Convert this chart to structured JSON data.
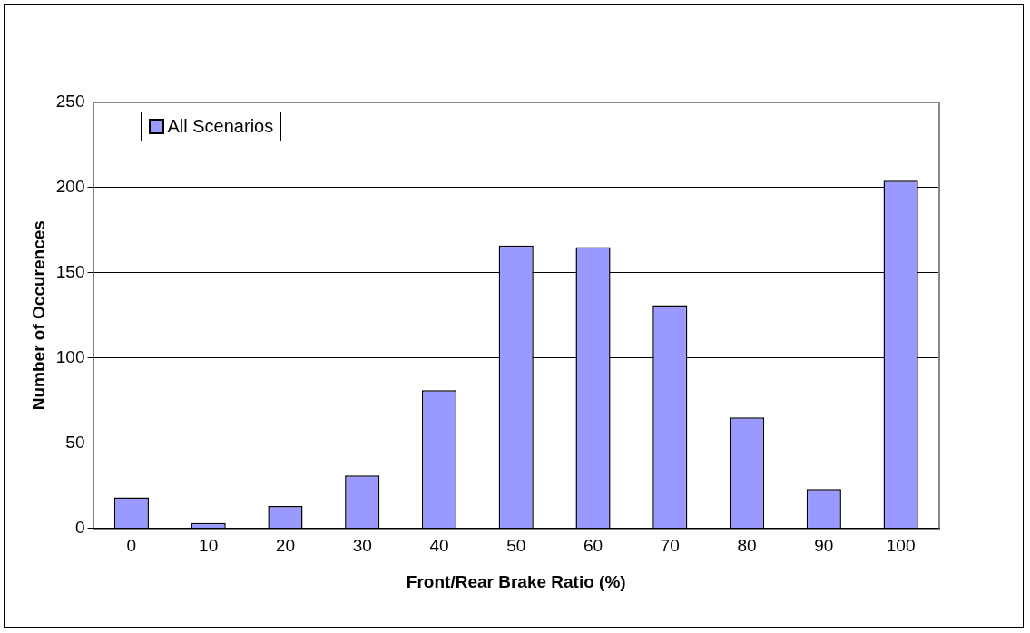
{
  "chart_data": {
    "type": "bar",
    "xlabel": "Front/Rear Brake Ratio (%)",
    "ylabel": "Number of Occurences",
    "categories": [
      "0",
      "10",
      "20",
      "30",
      "40",
      "50",
      "60",
      "70",
      "80",
      "90",
      "100"
    ],
    "series": [
      {
        "name": "All Scenarios",
        "color": "#9999ff",
        "values": [
          18,
          3,
          13,
          31,
          81,
          166,
          165,
          131,
          65,
          23,
          204
        ]
      }
    ],
    "ylim": [
      0,
      250
    ],
    "yticks": [
      0,
      50,
      100,
      150,
      200,
      250
    ],
    "grid": "y",
    "legend": "top left"
  }
}
